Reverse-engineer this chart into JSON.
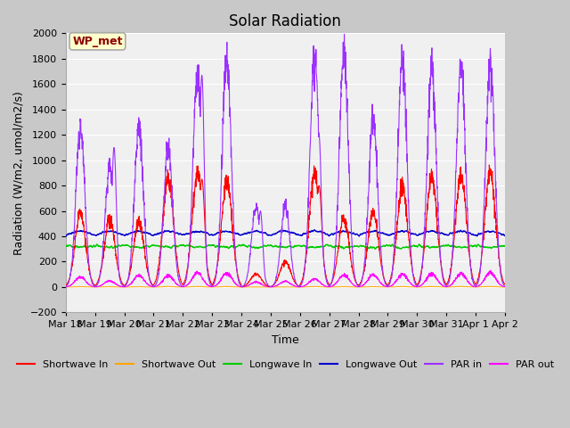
{
  "title": "Solar Radiation",
  "xlabel": "Time",
  "ylabel": "Radiation (W/m2, umol/m2/s)",
  "ylim": [
    -200,
    2000
  ],
  "yticks": [
    -200,
    0,
    200,
    400,
    600,
    800,
    1000,
    1200,
    1400,
    1600,
    1800,
    2000
  ],
  "x_tick_labels": [
    "Mar 18",
    "Mar 19",
    "Mar 20",
    "Mar 21",
    "Mar 22",
    "Mar 23",
    "Mar 24",
    "Mar 25",
    "Mar 26",
    "Mar 27",
    "Mar 28",
    "Mar 29",
    "Mar 30",
    "Mar 31",
    "Apr 1",
    "Apr 2"
  ],
  "legend_labels": [
    "Shortwave In",
    "Shortwave Out",
    "Longwave In",
    "Longwave Out",
    "PAR in",
    "PAR out"
  ],
  "legend_colors": [
    "#ff0000",
    "#ffa500",
    "#00cc00",
    "#0000cc",
    "#9b30ff",
    "#ff00ff"
  ],
  "line_colors": {
    "shortwave_in": "#ff0000",
    "shortwave_out": "#ffa500",
    "longwave_in": "#00cc00",
    "longwave_out": "#0000cc",
    "par_in": "#9b30ff",
    "par_out": "#ff00ff"
  },
  "annotation_text": "WP_met",
  "annotation_color": "#8b0000",
  "annotation_bg": "#ffffcc",
  "fig_bg_color": "#c8c8c8",
  "plot_bg_color": "#f0f0f0",
  "grid_color": "#ffffff",
  "n_days": 15,
  "points_per_day": 144,
  "par_in_peaks": [
    1260,
    950,
    1260,
    1100,
    1680,
    1800,
    640,
    640,
    1860,
    1860,
    1330,
    1790,
    1730,
    1750,
    1790
  ],
  "par_in_peaks2": [
    0,
    1100,
    0,
    0,
    1670,
    0,
    600,
    0,
    1200,
    0,
    0,
    0,
    0,
    0,
    0
  ],
  "sw_in_peaks": [
    580,
    530,
    510,
    860,
    900,
    840,
    105,
    200,
    900,
    540,
    590,
    800,
    860,
    900,
    920
  ],
  "sw_in_peaks2": [
    0,
    0,
    0,
    0,
    850,
    0,
    0,
    0,
    800,
    0,
    0,
    0,
    0,
    0,
    0
  ],
  "par_out_peaks": [
    80,
    50,
    90,
    90,
    110,
    110,
    40,
    45,
    65,
    95,
    95,
    100,
    105,
    105,
    115
  ],
  "lw_in_base": 335,
  "lw_out_base": 390,
  "title_fontsize": 12,
  "label_fontsize": 9,
  "tick_fontsize": 8,
  "legend_fontsize": 8
}
